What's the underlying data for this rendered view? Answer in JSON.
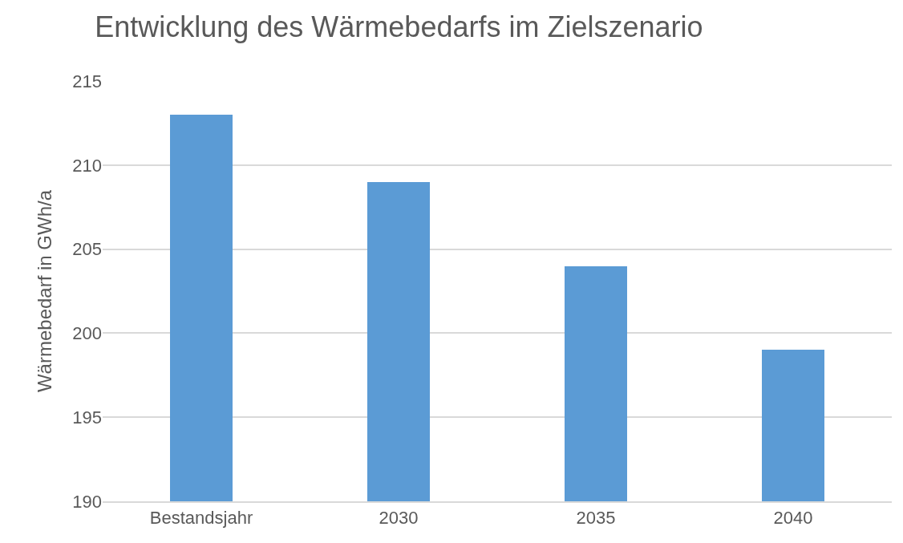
{
  "chart_data": {
    "type": "bar",
    "title": "Entwicklung des Wärmebedarfs im Zielszenario",
    "ylabel": "Wärmebedarf in GWh/a",
    "categories": [
      "Bestandsjahr",
      "2030",
      "2035",
      "2040"
    ],
    "values": [
      213,
      209,
      204,
      199
    ],
    "color": "#5b9bd5",
    "ylim": [
      190,
      215
    ],
    "yticks": [
      190,
      195,
      200,
      205,
      210,
      215
    ],
    "grid": "y",
    "legend": false
  }
}
